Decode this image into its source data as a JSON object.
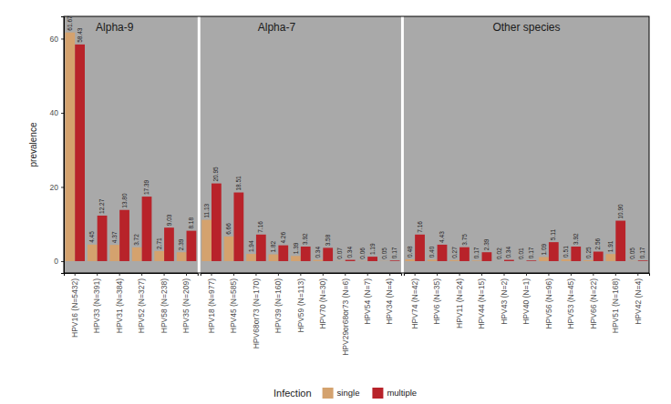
{
  "chart_data": [
    {
      "type": "bar",
      "title": "Alpha-9",
      "y_label": "prevalence",
      "legend_title": "Infection",
      "categories": [
        "HPV16 (N=5432)",
        "HPV33 (N=391)",
        "HPV31 (N=384)",
        "HPV52 (N=327)",
        "HPV58 (N=238)",
        "HPV35 (N=209)"
      ],
      "series": [
        {
          "name": "single",
          "color": "#d4a26e",
          "values": [
            61.67,
            4.45,
            4.37,
            3.72,
            2.71,
            2.39
          ],
          "value_labels": [
            "61.67",
            "4.45",
            "4.37",
            "3.72",
            "2.71",
            "2.39"
          ]
        },
        {
          "name": "multiple",
          "color": "#b8232a",
          "values": [
            58.43,
            12.27,
            13.8,
            17.39,
            9.03,
            8.18
          ],
          "value_labels": [
            "58.43",
            "12.27",
            "13.80",
            "17.39",
            "9.03",
            "8.18"
          ]
        }
      ],
      "ylim": [
        -3.2,
        66
      ],
      "yticks": [
        0,
        20,
        40,
        60
      ],
      "grid": false,
      "data_labels": true
    },
    {
      "type": "bar",
      "title": "Alpha-7",
      "categories": [
        "HPV18 (N=977)",
        "HPV45 (N=585)",
        "HPV68or73 (N=170)",
        "HPV39 (N=160)",
        "HPV59 (N=113)",
        "HPV70 (N=30)",
        "HPV29or68or73 (N=6)",
        "HPV54 (N=7)",
        "HPV34 (N=4)"
      ],
      "series": [
        {
          "color": "#d4a26e",
          "values": [
            11.13,
            6.66,
            1.94,
            1.82,
            1.39,
            0.34,
            0.07,
            0.06,
            0.05
          ],
          "value_labels": [
            "11.13",
            "6.66",
            "1.94",
            "1.82",
            "1.39",
            "0.34",
            "0.07",
            "0.06",
            "0.05"
          ]
        },
        {
          "color": "#b8232a",
          "values": [
            20.95,
            18.51,
            7.16,
            4.26,
            3.92,
            3.58,
            0.34,
            1.19,
            0.17
          ],
          "value_labels": [
            "20.95",
            "18.51",
            "7.16",
            "4.26",
            "3.92",
            "3.58",
            "0.34",
            "1.19",
            "0.17"
          ]
        }
      ],
      "ylim": [
        -3.2,
        66
      ],
      "grid": false,
      "data_labels": true
    },
    {
      "type": "bar",
      "title": "Other species",
      "categories": [
        "HPV74 (N=42)",
        "HPV6 (N=35)",
        "HPV11 (N=24)",
        "HPV44 (N=15)",
        "HPV43 (N=2)",
        "HPV40 (N=1)",
        "HPV56 (N=96)",
        "HPV53 (N=45)",
        "HPV66 (N=22)",
        "HPV51 (N=168)",
        "HPV42 (N=4)"
      ],
      "series": [
        {
          "color": "#d4a26e",
          "values": [
            0.48,
            0.4,
            0.27,
            0.17,
            0.02,
            0.01,
            1.09,
            0.51,
            0.25,
            1.91,
            0.05
          ],
          "value_labels": [
            "0.48",
            "0.40",
            "0.27",
            "0.17",
            "0.02",
            "0.01",
            "1.09",
            "0.51",
            "0.25",
            "1.91",
            "0.05"
          ]
        },
        {
          "color": "#b8232a",
          "values": [
            7.16,
            4.43,
            3.75,
            2.39,
            0.34,
            0.17,
            5.11,
            3.92,
            2.56,
            10.9,
            0.17
          ],
          "value_labels": [
            "7.16",
            "4.43",
            "3.75",
            "2.39",
            "0.34",
            "0.17",
            "5.11",
            "3.92",
            "2.56",
            "10.90",
            "0.17"
          ]
        }
      ],
      "ylim": [
        -3.2,
        66
      ],
      "grid": false,
      "data_labels": true
    }
  ]
}
